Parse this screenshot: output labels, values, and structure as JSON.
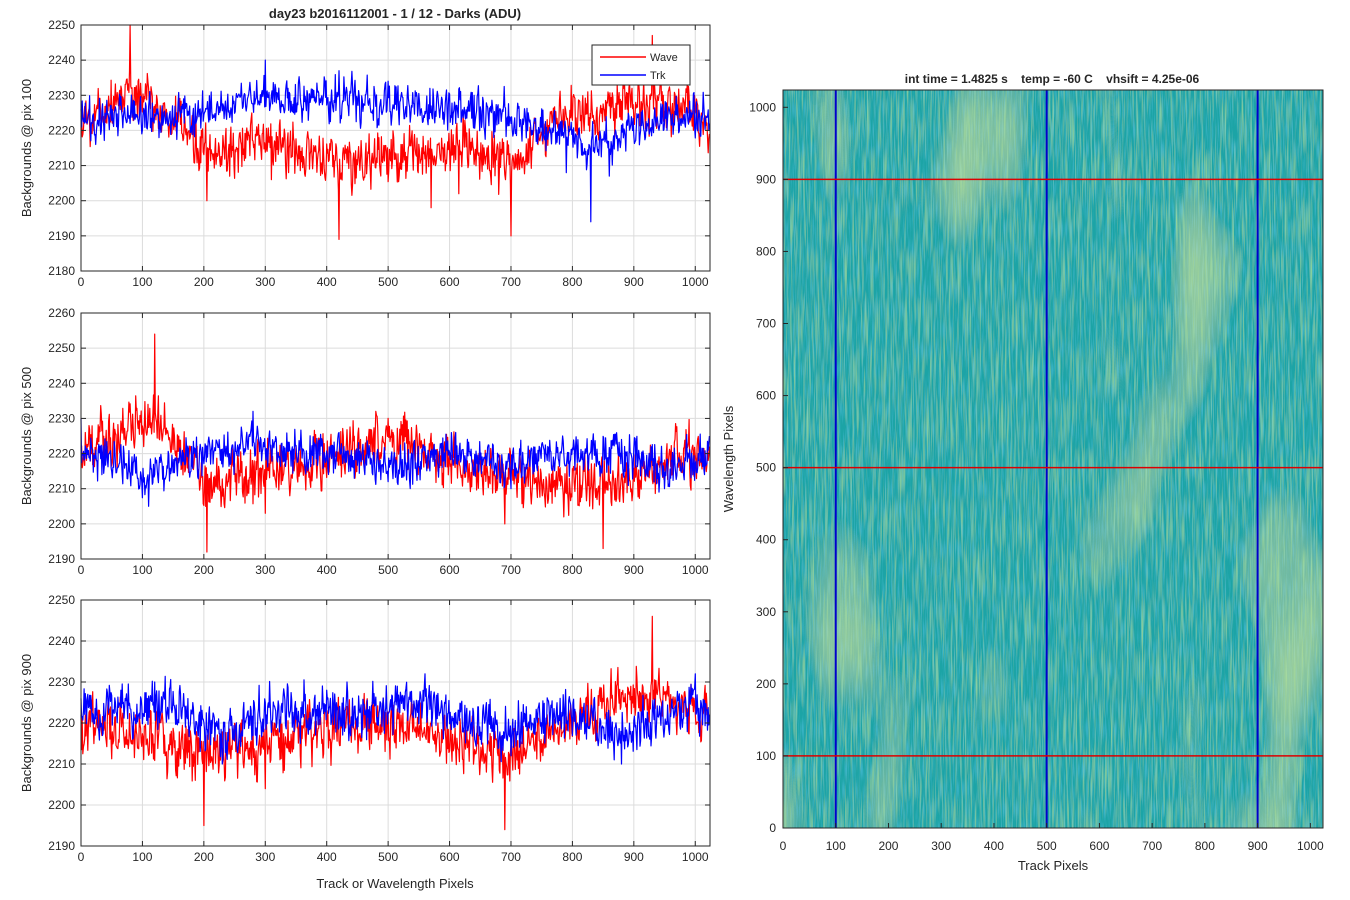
{
  "figure": {
    "title": "day23 b2016112001 - 1 / 12 - Darks (ADU)",
    "shared_xlabel": "Track or Wavelength Pixels"
  },
  "chart_data": [
    {
      "type": "line",
      "ylabel": "Backgrounds @ pix 100",
      "xlim": [
        0,
        1024
      ],
      "ylim": [
        2180,
        2250
      ],
      "xticks": [
        0,
        100,
        200,
        300,
        400,
        500,
        600,
        700,
        800,
        900,
        1000
      ],
      "yticks": [
        2180,
        2190,
        2200,
        2210,
        2220,
        2230,
        2240,
        2250
      ],
      "grid": true,
      "legend": {
        "location": "top-right",
        "entries": [
          "Wave",
          "Trk"
        ]
      },
      "series": [
        {
          "name": "Wave",
          "color": "#ff0000",
          "mean": 2222,
          "spread": 6.5,
          "x": [
            0,
            80,
            205,
            310,
            420,
            570,
            615,
            700,
            785,
            930,
            1023
          ],
          "y": [
            2224,
            2250,
            2200,
            2206,
            2189,
            2198,
            2202,
            2190,
            2226,
            2247,
            2219
          ]
        },
        {
          "name": "Trk",
          "color": "#0000ff",
          "mean": 2224,
          "spread": 5,
          "x": [
            0,
            150,
            300,
            420,
            500,
            640,
            700,
            790,
            830,
            860,
            950,
            1023
          ],
          "y": [
            2226,
            2222,
            2240,
            2237,
            2234,
            2230,
            2222,
            2208,
            2194,
            2207,
            2222,
            2222
          ]
        }
      ]
    },
    {
      "type": "line",
      "ylabel": "Backgrounds @ pix 500",
      "xlim": [
        0,
        1024
      ],
      "ylim": [
        2190,
        2260
      ],
      "xticks": [
        0,
        100,
        200,
        300,
        400,
        500,
        600,
        700,
        800,
        900,
        1000
      ],
      "yticks": [
        2190,
        2200,
        2210,
        2220,
        2230,
        2240,
        2250,
        2260
      ],
      "grid": true,
      "series": [
        {
          "name": "Wave",
          "color": "#ff0000",
          "mean": 2220,
          "spread": 6.5,
          "x": [
            0,
            120,
            205,
            300,
            500,
            690,
            850,
            1023
          ],
          "y": [
            2222,
            2254,
            2192,
            2203,
            2230,
            2200,
            2193,
            2222
          ]
        },
        {
          "name": "Trk",
          "color": "#0000ff",
          "mean": 2218,
          "spread": 5,
          "x": [
            0,
            110,
            180,
            280,
            330,
            420,
            500,
            560,
            610,
            700,
            760,
            880,
            950,
            1023
          ],
          "y": [
            2230,
            2205,
            2222,
            2232,
            2222,
            2226,
            2212,
            2222,
            2226,
            2210,
            2222,
            2224,
            2210,
            2225
          ]
        }
      ]
    },
    {
      "type": "line",
      "ylabel": "Backgrounds @ pix 900",
      "xlim": [
        0,
        1024
      ],
      "ylim": [
        2190,
        2250
      ],
      "xticks": [
        0,
        100,
        200,
        300,
        400,
        500,
        600,
        700,
        800,
        900,
        1000
      ],
      "yticks": [
        2190,
        2200,
        2210,
        2220,
        2230,
        2240,
        2250
      ],
      "grid": true,
      "series": [
        {
          "name": "Wave",
          "color": "#ff0000",
          "mean": 2221,
          "spread": 5.5,
          "x": [
            0,
            200,
            300,
            480,
            690,
            930,
            1023
          ],
          "y": [
            2222,
            2195,
            2204,
            2220,
            2194,
            2246,
            2222
          ]
        },
        {
          "name": "Trk",
          "color": "#0000ff",
          "mean": 2221,
          "spread": 5,
          "x": [
            0,
            120,
            230,
            300,
            400,
            470,
            560,
            650,
            700,
            780,
            880,
            1000,
            1023
          ],
          "y": [
            2226,
            2230,
            2210,
            2225,
            2228,
            2224,
            2232,
            2216,
            2212,
            2226,
            2210,
            2232,
            2222
          ]
        }
      ]
    },
    {
      "type": "heatmap",
      "title": "int time = 1.4825 s    temp = -60 C    vhsift = 4.25e-06",
      "xlabel": "Track Pixels",
      "ylabel": "Wavelength Pixels",
      "xlim": [
        0,
        1024
      ],
      "ylim": [
        0,
        1024
      ],
      "xticks": [
        0,
        100,
        200,
        300,
        400,
        500,
        600,
        700,
        800,
        900,
        1000
      ],
      "yticks": [
        0,
        100,
        200,
        300,
        400,
        500,
        600,
        700,
        800,
        900,
        1000
      ],
      "colormap": [
        "#1aa2b0",
        "#1fa4a6",
        "#27b193",
        "#49bd76",
        "#6ec55a"
      ],
      "vertical_markers": {
        "color": "#0000cc",
        "x": [
          100,
          500,
          900
        ]
      },
      "horizontal_markers": {
        "color": "#dd0000",
        "y": [
          100,
          500,
          900
        ]
      }
    }
  ]
}
